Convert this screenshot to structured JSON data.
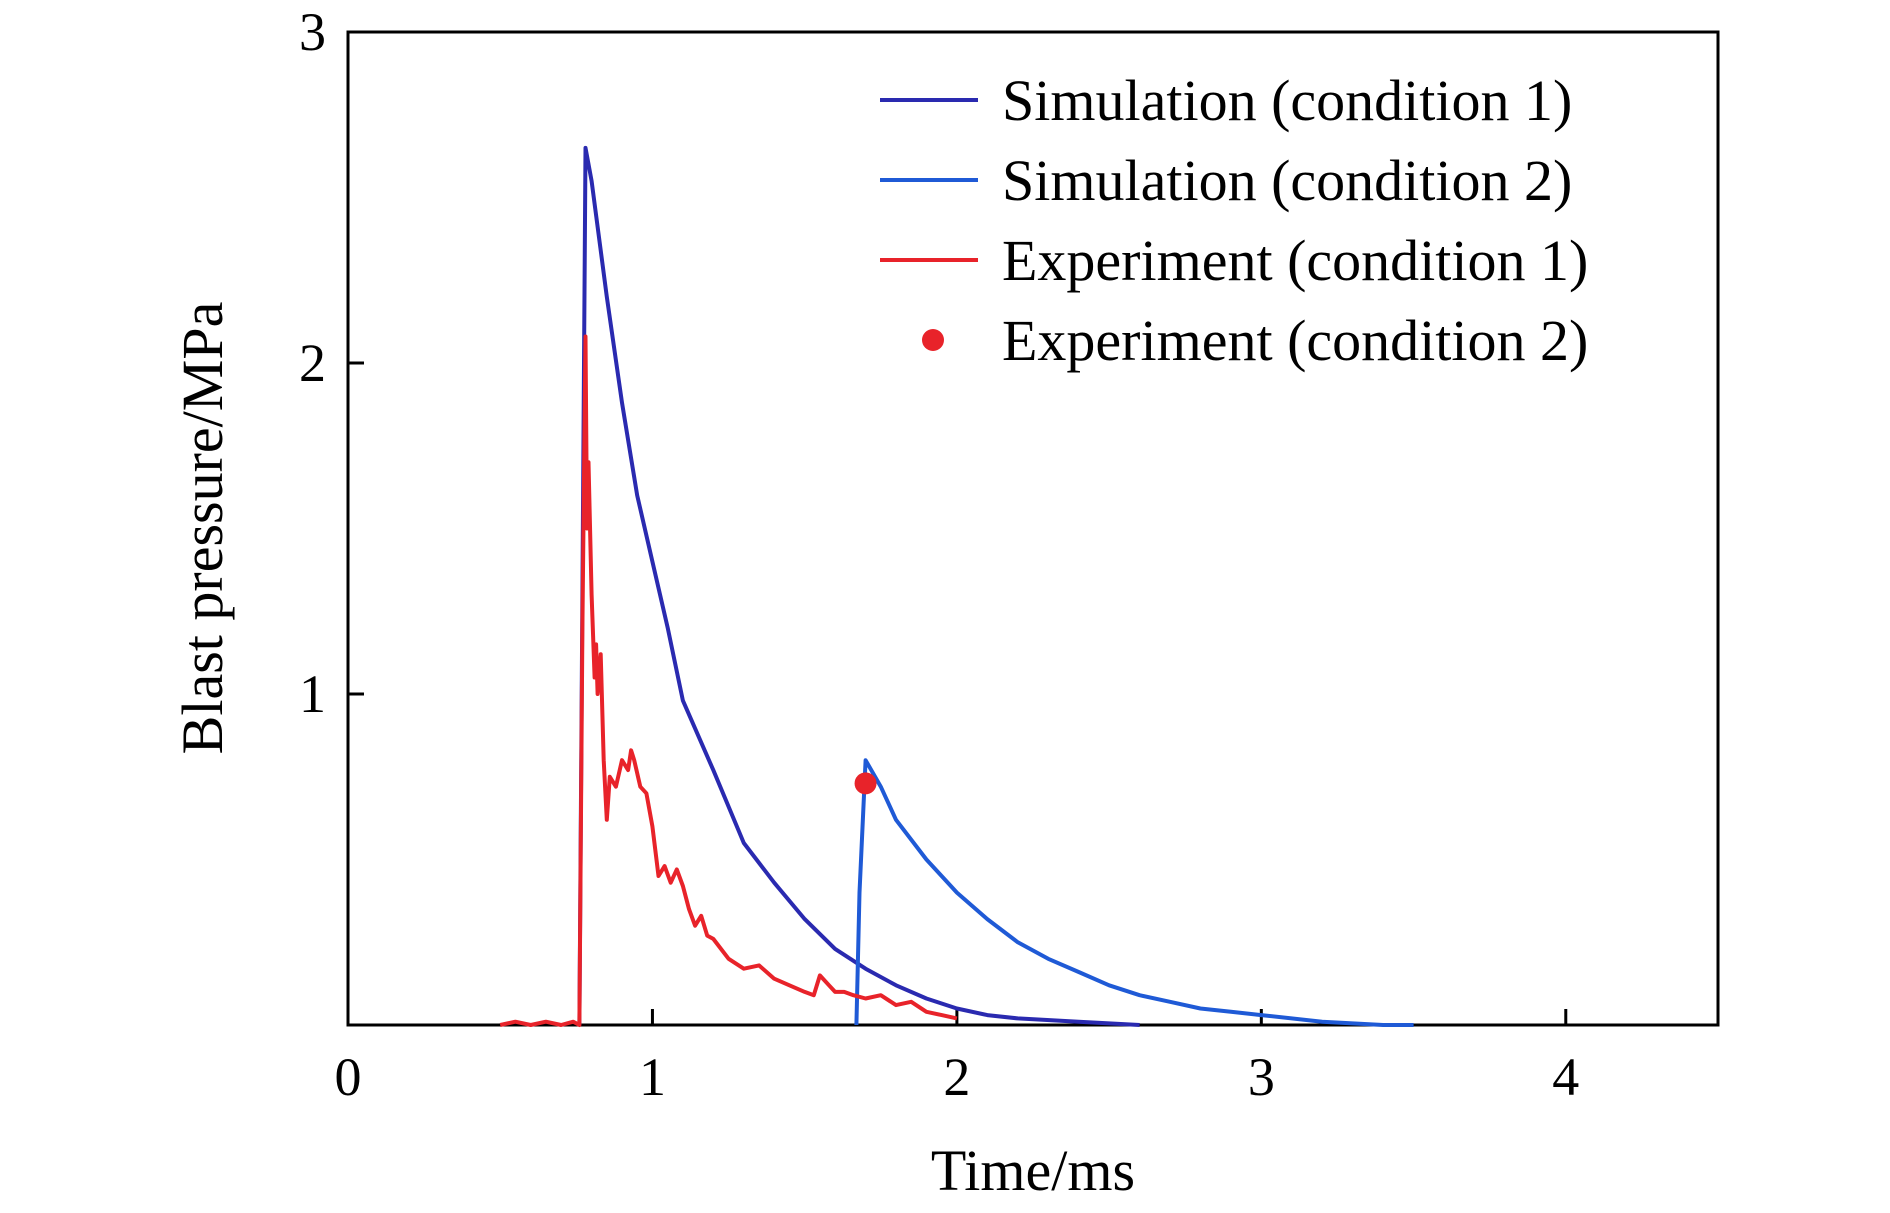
{
  "chart_data": {
    "type": "line",
    "title": "",
    "xlabel": "Time/ms",
    "ylabel": "Blast pressure/MPa",
    "xlim": [
      0,
      4.5
    ],
    "ylim": [
      0,
      3
    ],
    "x_ticks": [
      0,
      1,
      2,
      3,
      4
    ],
    "y_ticks": [
      1,
      2,
      3
    ],
    "x_tick_labels": [
      "0",
      "1",
      "2",
      "3",
      "4"
    ],
    "y_tick_labels": [
      "1",
      "2",
      "3"
    ],
    "grid": false,
    "legend_position": "top-right",
    "series": [
      {
        "name": "Simulation (condition 1)",
        "kind": "line",
        "color": "#2a2ab0",
        "x": [
          0.76,
          0.77,
          0.78,
          0.8,
          0.85,
          0.9,
          0.95,
          1.0,
          1.05,
          1.1,
          1.2,
          1.3,
          1.4,
          1.5,
          1.6,
          1.7,
          1.8,
          1.9,
          2.0,
          2.1,
          2.2,
          2.4,
          2.6
        ],
        "y": [
          0.0,
          1.3,
          2.65,
          2.55,
          2.2,
          1.88,
          1.6,
          1.4,
          1.2,
          0.98,
          0.77,
          0.55,
          0.43,
          0.32,
          0.23,
          0.17,
          0.12,
          0.08,
          0.05,
          0.03,
          0.02,
          0.01,
          0.0
        ]
      },
      {
        "name": "Simulation (condition 2)",
        "kind": "line",
        "color": "#1f5ad6",
        "x": [
          1.67,
          1.68,
          1.7,
          1.75,
          1.8,
          1.9,
          2.0,
          2.1,
          2.2,
          2.3,
          2.4,
          2.5,
          2.6,
          2.7,
          2.8,
          2.9,
          3.0,
          3.2,
          3.4,
          3.5
        ],
        "y": [
          0.0,
          0.4,
          0.8,
          0.72,
          0.62,
          0.5,
          0.4,
          0.32,
          0.25,
          0.2,
          0.16,
          0.12,
          0.09,
          0.07,
          0.05,
          0.04,
          0.03,
          0.01,
          0.0,
          0.0
        ]
      },
      {
        "name": "Experiment (condition 1)",
        "kind": "line",
        "color": "#e8232a",
        "x": [
          0.5,
          0.55,
          0.6,
          0.65,
          0.7,
          0.74,
          0.76,
          0.77,
          0.78,
          0.785,
          0.79,
          0.8,
          0.81,
          0.815,
          0.82,
          0.83,
          0.84,
          0.85,
          0.86,
          0.88,
          0.9,
          0.92,
          0.93,
          0.94,
          0.96,
          0.98,
          1.0,
          1.02,
          1.04,
          1.06,
          1.08,
          1.1,
          1.12,
          1.14,
          1.16,
          1.18,
          1.2,
          1.25,
          1.3,
          1.35,
          1.4,
          1.45,
          1.5,
          1.53,
          1.55,
          1.58,
          1.6,
          1.63,
          1.66,
          1.7,
          1.75,
          1.8,
          1.85,
          1.9,
          1.95,
          2.0
        ],
        "y": [
          0.0,
          0.01,
          0.0,
          0.01,
          0.0,
          0.01,
          0.0,
          1.2,
          2.08,
          1.5,
          1.7,
          1.3,
          1.05,
          1.15,
          1.0,
          1.12,
          0.8,
          0.62,
          0.75,
          0.72,
          0.8,
          0.77,
          0.83,
          0.8,
          0.72,
          0.7,
          0.6,
          0.45,
          0.48,
          0.43,
          0.47,
          0.42,
          0.35,
          0.3,
          0.33,
          0.27,
          0.26,
          0.2,
          0.17,
          0.18,
          0.14,
          0.12,
          0.1,
          0.09,
          0.15,
          0.12,
          0.1,
          0.1,
          0.09,
          0.08,
          0.09,
          0.06,
          0.07,
          0.04,
          0.03,
          0.02
        ]
      },
      {
        "name": "Experiment (condition 2)",
        "kind": "scatter",
        "color": "#e8232a",
        "x": [
          1.7
        ],
        "y": [
          0.73
        ]
      }
    ]
  }
}
